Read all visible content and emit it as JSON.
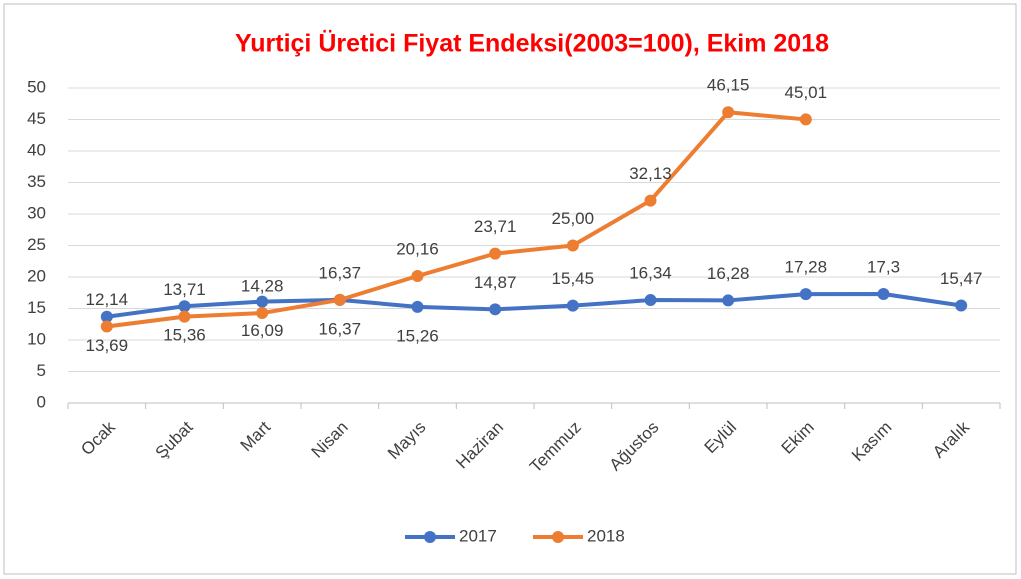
{
  "chart_data": {
    "type": "line",
    "title": "Yurtiçi Üretici Fiyat Endeksi(2003=100), Ekim 2018",
    "categories": [
      "Ocak",
      "Şubat",
      "Mart",
      "Nisan",
      "Mayıs",
      "Haziran",
      "Temmuz",
      "Ağustos",
      "Eylül",
      "Ekim",
      "Kasım",
      "Aralık"
    ],
    "series": [
      {
        "name": "2017",
        "color": "#4472c4",
        "values": [
          13.69,
          15.36,
          16.09,
          16.37,
          15.26,
          14.87,
          15.45,
          16.34,
          16.28,
          17.28,
          17.3,
          15.47
        ],
        "value_labels": [
          "13,69",
          "15,36",
          "16,09",
          "16,37",
          "15,26",
          "14,87",
          "15,45",
          "16,34",
          "16,28",
          "17,28",
          "17,3",
          "15,47"
        ]
      },
      {
        "name": "2018",
        "color": "#ed7d31",
        "values": [
          12.14,
          13.71,
          14.28,
          16.37,
          20.16,
          23.71,
          25.0,
          32.13,
          46.15,
          45.01,
          null,
          null
        ],
        "value_labels": [
          "12,14",
          "13,71",
          "14,28",
          "16,37",
          "20,16",
          "23,71",
          "25,00",
          "32,13",
          "46,15",
          "45,01",
          null,
          null
        ]
      }
    ],
    "ylim": [
      0,
      50
    ],
    "yticks": [
      0,
      5,
      10,
      15,
      20,
      25,
      30,
      35,
      40,
      45,
      50
    ],
    "grid": true,
    "legend": "bottom"
  }
}
